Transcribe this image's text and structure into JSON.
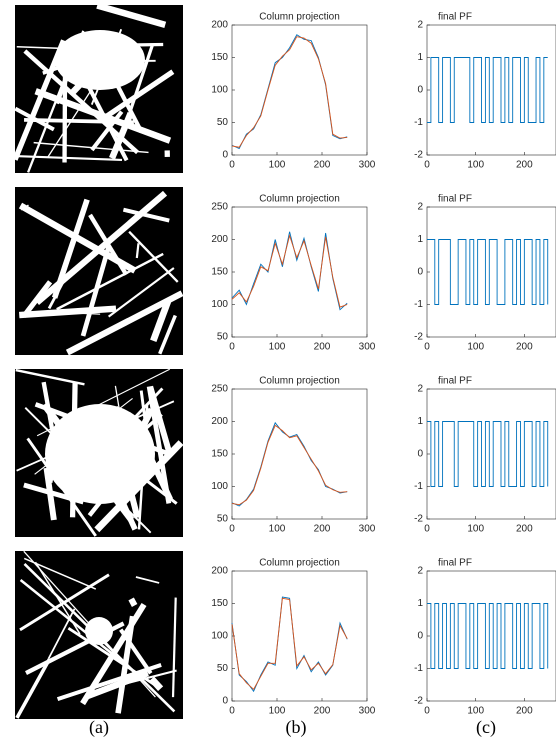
{
  "chart_data": [
    {
      "type": "line",
      "title": "Column projection",
      "x": [
        0,
        16,
        32,
        48,
        64,
        80,
        96,
        112,
        128,
        144,
        160,
        176,
        192,
        208,
        224,
        240,
        256
      ],
      "series": [
        {
          "color": "#0072bd",
          "values": [
            15,
            10,
            32,
            40,
            62,
            102,
            142,
            150,
            165,
            185,
            178,
            176,
            150,
            108,
            30,
            25,
            28
          ]
        },
        {
          "color": "#d95319",
          "values": [
            14,
            12,
            30,
            42,
            60,
            100,
            138,
            152,
            162,
            182,
            180,
            172,
            148,
            110,
            32,
            26,
            27
          ]
        }
      ],
      "xlim": [
        0,
        300
      ],
      "ylim": [
        0,
        200
      ],
      "xticks": [
        0,
        100,
        200,
        300
      ],
      "yticks": [
        0,
        50,
        100,
        150,
        200
      ]
    },
    {
      "type": "step",
      "title": "final PF",
      "x": [
        0,
        8,
        16,
        24,
        32,
        40,
        48,
        56,
        64,
        72,
        80,
        88,
        96,
        104,
        112,
        120,
        128,
        136,
        144,
        152,
        160,
        168,
        176,
        184,
        192,
        200,
        208,
        216,
        224,
        232,
        240,
        248
      ],
      "series": [
        {
          "color": "#0072bd",
          "values": [
            -1,
            1,
            1,
            -1,
            1,
            1,
            -1,
            1,
            1,
            1,
            1,
            -1,
            1,
            1,
            -1,
            1,
            -1,
            1,
            1,
            -1,
            1,
            -1,
            1,
            1,
            -1,
            1,
            -1,
            -1,
            1,
            -1,
            1,
            1
          ]
        }
      ],
      "xlim": [
        0,
        265
      ],
      "ylim": [
        -2,
        2
      ],
      "xticks": [
        0,
        100,
        200
      ],
      "yticks": [
        -2,
        -1,
        0,
        1,
        2
      ]
    },
    {
      "type": "line",
      "title": "Column projection",
      "x": [
        0,
        16,
        32,
        48,
        64,
        80,
        96,
        112,
        128,
        144,
        160,
        176,
        192,
        208,
        224,
        240,
        256
      ],
      "series": [
        {
          "color": "#0072bd",
          "values": [
            110,
            122,
            100,
            132,
            162,
            150,
            200,
            158,
            212,
            168,
            202,
            158,
            120,
            210,
            140,
            92,
            102
          ]
        },
        {
          "color": "#d95319",
          "values": [
            108,
            118,
            104,
            128,
            158,
            152,
            194,
            162,
            206,
            172,
            198,
            160,
            124,
            204,
            142,
            96,
            100
          ]
        }
      ],
      "xlim": [
        0,
        300
      ],
      "ylim": [
        50,
        250
      ],
      "xticks": [
        0,
        100,
        200,
        300
      ],
      "yticks": [
        50,
        100,
        150,
        200,
        250
      ]
    },
    {
      "type": "step",
      "title": "final PF",
      "x": [
        0,
        8,
        16,
        24,
        32,
        40,
        48,
        56,
        64,
        72,
        80,
        88,
        96,
        104,
        112,
        120,
        128,
        136,
        144,
        152,
        160,
        168,
        176,
        184,
        192,
        200,
        208,
        216,
        224,
        232,
        240,
        248
      ],
      "series": [
        {
          "color": "#0072bd",
          "values": [
            1,
            1,
            -1,
            1,
            1,
            1,
            -1,
            -1,
            1,
            1,
            -1,
            1,
            -1,
            1,
            1,
            -1,
            1,
            1,
            -1,
            -1,
            1,
            1,
            -1,
            1,
            -1,
            1,
            1,
            -1,
            1,
            -1,
            1,
            -1
          ]
        }
      ],
      "xlim": [
        0,
        265
      ],
      "ylim": [
        -2,
        2
      ],
      "xticks": [
        0,
        100,
        200
      ],
      "yticks": [
        -2,
        -1,
        0,
        1,
        2
      ]
    },
    {
      "type": "line",
      "title": "Column projection",
      "x": [
        0,
        16,
        32,
        48,
        64,
        80,
        96,
        112,
        128,
        144,
        160,
        176,
        192,
        208,
        224,
        240,
        256
      ],
      "series": [
        {
          "color": "#0072bd",
          "values": [
            75,
            70,
            80,
            96,
            130,
            170,
            198,
            184,
            176,
            180,
            162,
            140,
            126,
            100,
            96,
            90,
            92
          ]
        },
        {
          "color": "#d95319",
          "values": [
            74,
            72,
            79,
            94,
            128,
            168,
            194,
            186,
            175,
            178,
            160,
            142,
            124,
            102,
            95,
            91,
            92
          ]
        }
      ],
      "xlim": [
        0,
        300
      ],
      "ylim": [
        50,
        250
      ],
      "xticks": [
        0,
        100,
        200,
        300
      ],
      "yticks": [
        50,
        100,
        150,
        200,
        250
      ]
    },
    {
      "type": "step",
      "title": "final PF",
      "x": [
        0,
        8,
        16,
        24,
        32,
        40,
        48,
        56,
        64,
        72,
        80,
        88,
        96,
        104,
        112,
        120,
        128,
        136,
        144,
        152,
        160,
        168,
        176,
        184,
        192,
        200,
        208,
        216,
        224,
        232,
        240,
        248
      ],
      "series": [
        {
          "color": "#0072bd",
          "values": [
            1,
            -1,
            1,
            -1,
            1,
            1,
            1,
            -1,
            1,
            1,
            1,
            1,
            -1,
            1,
            -1,
            1,
            -1,
            1,
            1,
            -1,
            1,
            -1,
            -1,
            1,
            -1,
            1,
            1,
            -1,
            1,
            -1,
            1,
            -1
          ]
        }
      ],
      "xlim": [
        0,
        265
      ],
      "ylim": [
        -2,
        2
      ],
      "xticks": [
        0,
        100,
        200
      ],
      "yticks": [
        -2,
        -1,
        0,
        1,
        2
      ]
    },
    {
      "type": "line",
      "title": "Column projection",
      "x": [
        0,
        16,
        32,
        48,
        64,
        80,
        96,
        112,
        128,
        144,
        160,
        176,
        192,
        208,
        224,
        240,
        256
      ],
      "series": [
        {
          "color": "#0072bd",
          "values": [
            120,
            40,
            30,
            15,
            40,
            60,
            55,
            160,
            158,
            50,
            70,
            45,
            60,
            40,
            55,
            120,
            95
          ]
        },
        {
          "color": "#d95319",
          "values": [
            118,
            42,
            28,
            18,
            38,
            58,
            58,
            158,
            156,
            54,
            68,
            48,
            58,
            42,
            56,
            116,
            96
          ]
        }
      ],
      "xlim": [
        0,
        300
      ],
      "ylim": [
        0,
        200
      ],
      "xticks": [
        0,
        100,
        200,
        300
      ],
      "yticks": [
        0,
        50,
        100,
        150,
        200
      ]
    },
    {
      "type": "step",
      "title": "final PF",
      "x": [
        0,
        8,
        16,
        24,
        32,
        40,
        48,
        56,
        64,
        72,
        80,
        88,
        96,
        104,
        112,
        120,
        128,
        136,
        144,
        152,
        160,
        168,
        176,
        184,
        192,
        200,
        208,
        216,
        224,
        232,
        240,
        248
      ],
      "series": [
        {
          "color": "#0072bd",
          "values": [
            1,
            -1,
            1,
            -1,
            1,
            -1,
            1,
            -1,
            1,
            1,
            -1,
            1,
            -1,
            1,
            1,
            -1,
            1,
            -1,
            1,
            -1,
            1,
            1,
            -1,
            1,
            -1,
            1,
            -1,
            1,
            1,
            -1,
            1,
            -1
          ]
        }
      ],
      "xlim": [
        0,
        265
      ],
      "ylim": [
        -2,
        2
      ],
      "xticks": [
        0,
        100,
        200
      ],
      "yticks": [
        -2,
        -1,
        0,
        1,
        2
      ]
    }
  ],
  "captions": [
    "(a)",
    "(b)",
    "(c)"
  ]
}
